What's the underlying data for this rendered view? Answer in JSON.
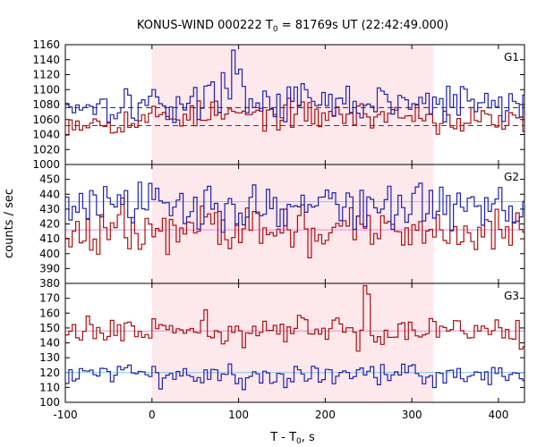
{
  "chart_data": {
    "type": "line",
    "title_main": "KONUS-WIND 000222 T",
    "title_sub": "0",
    "title_rest": " = 81769s UT (22:42:49.000)",
    "xlabel_main": "T - T",
    "xlabel_sub": "0",
    "xlabel_rest": ", s",
    "ylabel": "counts / sec",
    "xlim": [
      -100,
      430
    ],
    "x_ticks": [
      -100,
      0,
      100,
      200,
      300,
      400
    ],
    "shaded_interval": [
      0,
      325
    ],
    "step": 4,
    "colors": {
      "raw": "#2222aa",
      "rebinned": "#aa1111",
      "raw_fit": "#7fc8ee",
      "rebinned_fit": "#ee88dd",
      "shade": "#fde8ec"
    },
    "panels": [
      {
        "label": "G1",
        "ylim": [
          1000,
          1160
        ],
        "y_ticks": [
          1000,
          1020,
          1040,
          1060,
          1080,
          1100,
          1120,
          1140,
          1160
        ],
        "upper_series": {
          "mean": 1081,
          "noise": 13,
          "bg_level": 1076,
          "bg_dashed": true,
          "features": [
            {
              "x": [
                62,
                92
              ],
              "y": 1105
            },
            {
              "x": [
                92,
                125
              ],
              "y": 1090
            },
            {
              "x": [
                100,
                104
              ],
              "y": 1143
            },
            {
              "x": [
                92,
                100
              ],
              "y": 1120
            }
          ]
        },
        "lower_series": {
          "mean": 1058,
          "noise": 9,
          "bg_level": 1052,
          "bg_dashed": true,
          "features": [
            {
              "x": [
                0,
                325
              ],
              "y": 1066
            }
          ]
        }
      },
      {
        "label": "G2",
        "ylim": [
          380,
          460
        ],
        "y_ticks": [
          380,
          390,
          400,
          410,
          420,
          430,
          440,
          450
        ],
        "upper_series": {
          "mean": 432,
          "noise": 8,
          "bg_level": 435,
          "bg_dashed": false,
          "features": []
        },
        "lower_series": {
          "mean": 416,
          "noise": 8,
          "bg_level": 416,
          "bg_dashed": false,
          "features": []
        }
      },
      {
        "label": "G3",
        "ylim": [
          100,
          180
        ],
        "y_ticks": [
          100,
          110,
          120,
          130,
          140,
          150,
          160,
          170
        ],
        "upper_series": {
          "mean": 148,
          "noise": 5,
          "bg_level": 148,
          "bg_dashed": false,
          "features": [
            {
              "x": [
                244,
                250
              ],
              "y": 175
            }
          ]
        },
        "lower_series": {
          "mean": 118,
          "noise": 4,
          "bg_level": 120,
          "bg_dashed": false,
          "features": []
        }
      }
    ]
  }
}
